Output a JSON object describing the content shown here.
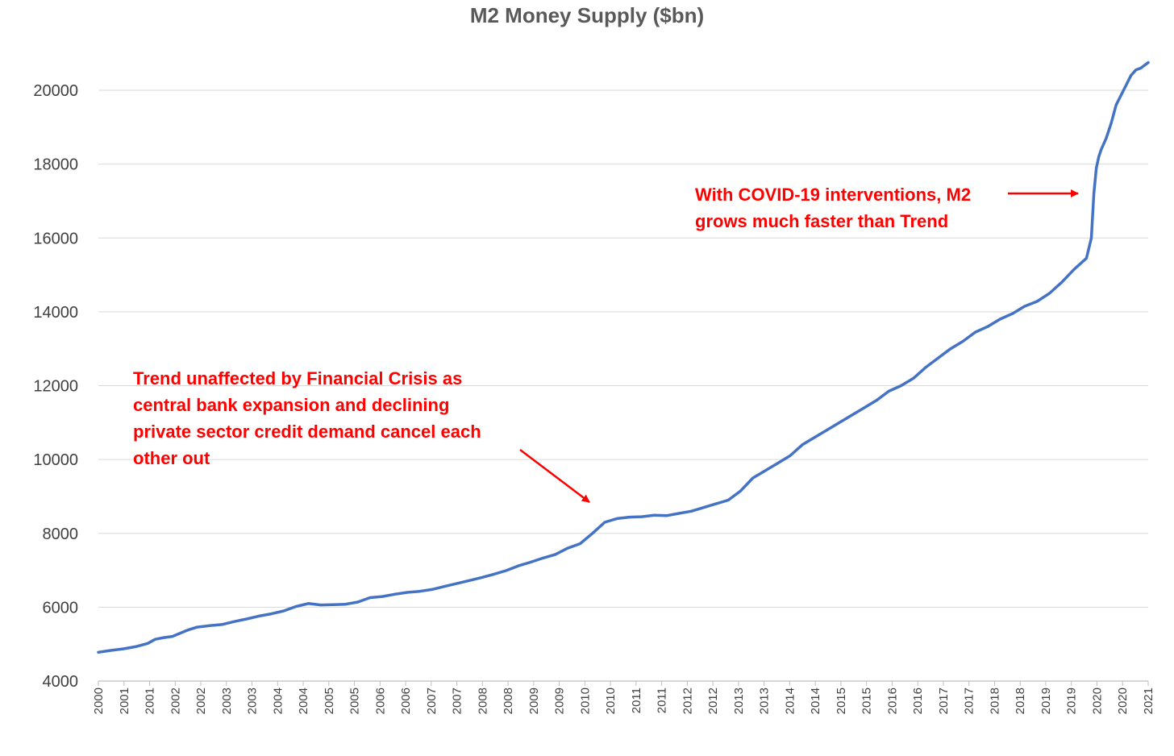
{
  "chart_data": {
    "type": "line",
    "title": "M2 Money Supply ($bn)",
    "xlabel": "",
    "ylabel": "",
    "ylim": [
      4000,
      20000
    ],
    "y_ticks": [
      "4000",
      "6000",
      "8000",
      "10000",
      "12000",
      "14000",
      "16000",
      "18000",
      "20000"
    ],
    "x_tick_labels": [
      "2000",
      "2001",
      "2001",
      "2002",
      "2002",
      "2003",
      "2003",
      "2004",
      "2004",
      "2005",
      "2005",
      "2006",
      "2006",
      "2007",
      "2007",
      "2008",
      "2008",
      "2009",
      "2009",
      "2010",
      "2010",
      "2011",
      "2011",
      "2012",
      "2012",
      "2013",
      "2013",
      "2014",
      "2014",
      "2015",
      "2015",
      "2016",
      "2016",
      "2017",
      "2017",
      "2018",
      "2018",
      "2019",
      "2019",
      "2020",
      "2020",
      "2021"
    ],
    "grid": "horizontal",
    "legend": "none",
    "line_color": "#4472C4",
    "annotation_color": "#FF0000",
    "series": [
      {
        "x": [
          2000.0,
          2000.25,
          2000.5,
          2000.75,
          2001.0,
          2001.15,
          2001.3,
          2001.5,
          2001.75,
          2001.85,
          2002.0,
          2002.25,
          2002.5,
          2002.75,
          2003.0,
          2003.25,
          2003.5,
          2003.75,
          2004.0,
          2004.25,
          2004.5,
          2004.75,
          2005.0,
          2005.25,
          2005.5,
          2005.75,
          2006.0,
          2006.25,
          2006.5,
          2006.75,
          2007.0,
          2007.25,
          2007.5,
          2007.75,
          2008.0,
          2008.25,
          2008.5,
          2008.75,
          2009.0,
          2009.25,
          2009.5,
          2009.75,
          2010.0,
          2010.25,
          2010.5,
          2010.75,
          2011.0,
          2011.25,
          2011.5,
          2011.75,
          2012.0,
          2012.25,
          2012.5,
          2012.75,
          2013.0,
          2013.25,
          2013.5,
          2013.75,
          2014.0,
          2014.25,
          2014.5,
          2014.75,
          2015.0,
          2015.25,
          2015.5,
          2015.75,
          2016.0,
          2016.25,
          2016.5,
          2016.75,
          2017.0,
          2017.25,
          2017.5,
          2017.75,
          2018.0,
          2018.25,
          2018.5,
          2018.75,
          2019.0,
          2019.25,
          2019.5,
          2019.75,
          2020.0,
          2020.1,
          2020.15,
          2020.2,
          2020.25,
          2020.3,
          2020.4,
          2020.5,
          2020.6,
          2020.75,
          2020.9,
          2021.0,
          2021.1,
          2021.2,
          2021.25
        ],
        "values": [
          4780,
          4830,
          4870,
          4930,
          5020,
          5130,
          5170,
          5210,
          5350,
          5400,
          5460,
          5500,
          5530,
          5610,
          5680,
          5760,
          5820,
          5900,
          6020,
          6100,
          6060,
          6070,
          6080,
          6140,
          6260,
          6290,
          6350,
          6400,
          6430,
          6480,
          6560,
          6640,
          6720,
          6800,
          6890,
          6990,
          7120,
          7220,
          7330,
          7430,
          7600,
          7720,
          8000,
          8300,
          8400,
          8440,
          8450,
          8490,
          8480,
          8540,
          8600,
          8700,
          8800,
          8900,
          9150,
          9500,
          9700,
          9900,
          10100,
          10400,
          10600,
          10800,
          11000,
          11200,
          11400,
          11600,
          11850,
          12000,
          12200,
          12500,
          12750,
          13000,
          13200,
          13450,
          13600,
          13800,
          13950,
          14150,
          14280,
          14500,
          14800,
          15150,
          15450,
          16000,
          17200,
          17900,
          18200,
          18400,
          18700,
          19100,
          19600,
          20000,
          20400,
          20550,
          20600,
          20700,
          20750
        ]
      }
    ],
    "annotations": [
      {
        "text_lines": [
          "Trend unaffected by Financial Crisis as",
          "central bank expansion and declining",
          "private sector credit demand cancel each",
          "other out"
        ]
      },
      {
        "text_lines": [
          "With COVID-19 interventions, M2",
          "grows much faster than Trend"
        ]
      }
    ]
  }
}
